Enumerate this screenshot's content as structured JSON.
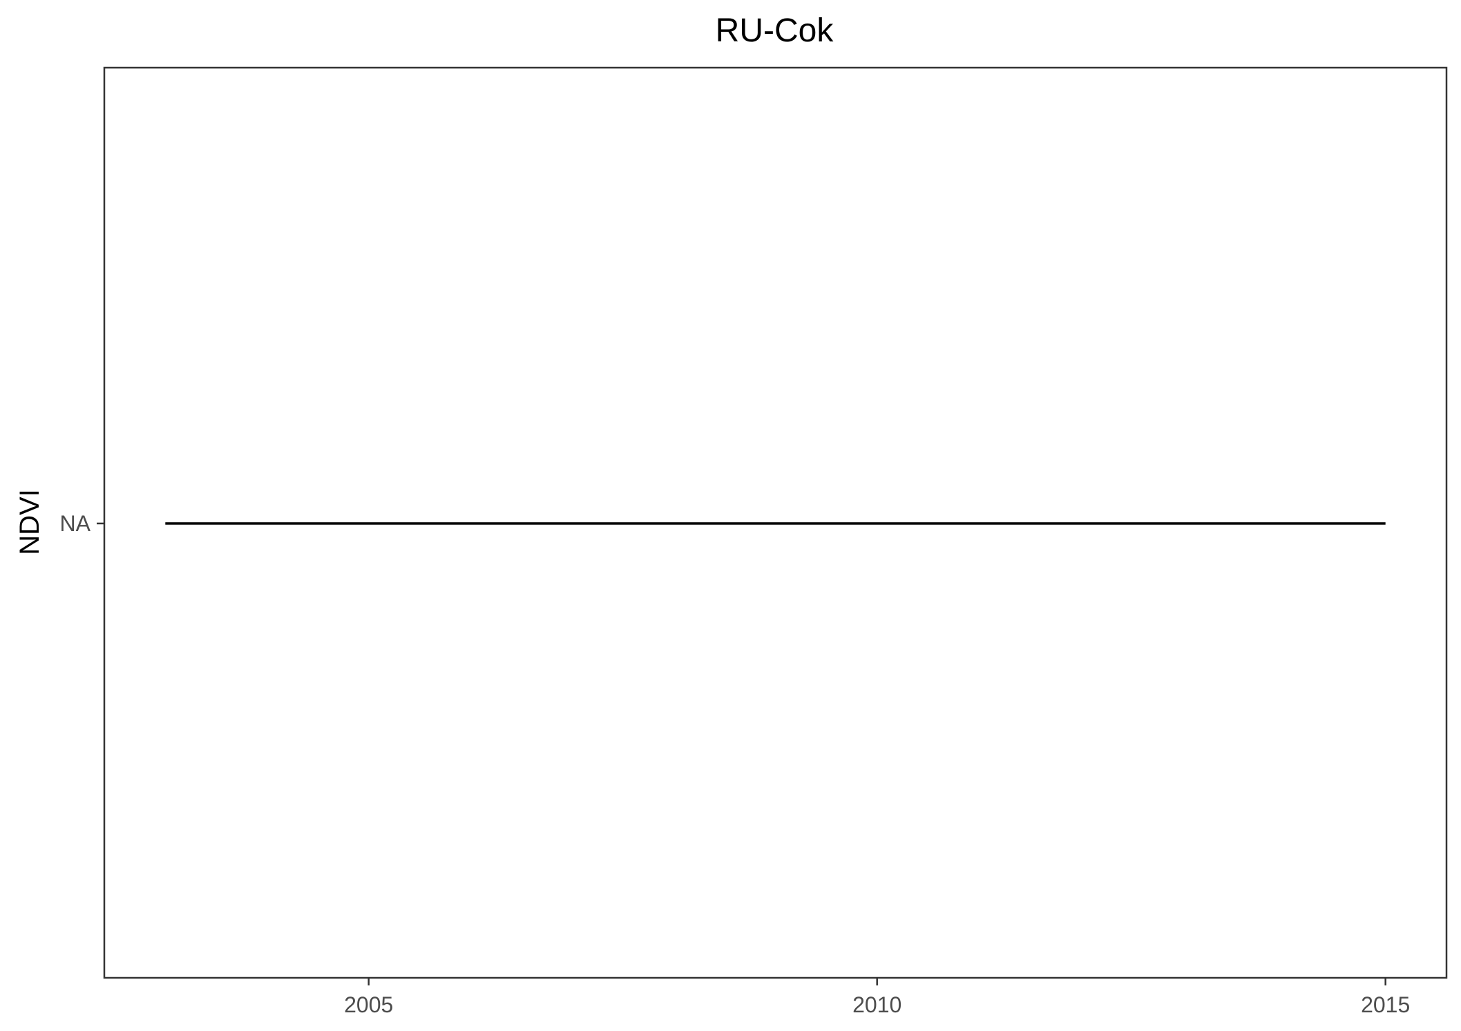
{
  "chart_data": {
    "type": "line",
    "title": "RU-Cok",
    "xlabel": "",
    "ylabel": "NDVI",
    "xlim": [
      2002.4,
      2015.6
    ],
    "x_ticks": [
      "2005",
      "2010",
      "2015"
    ],
    "y_ticks": [
      "NA"
    ],
    "grid": false,
    "legend": "none",
    "series": [
      {
        "x": [
          2003.0,
          2015.0
        ],
        "y": [
          "NA",
          "NA"
        ],
        "color": "#000000"
      }
    ]
  }
}
